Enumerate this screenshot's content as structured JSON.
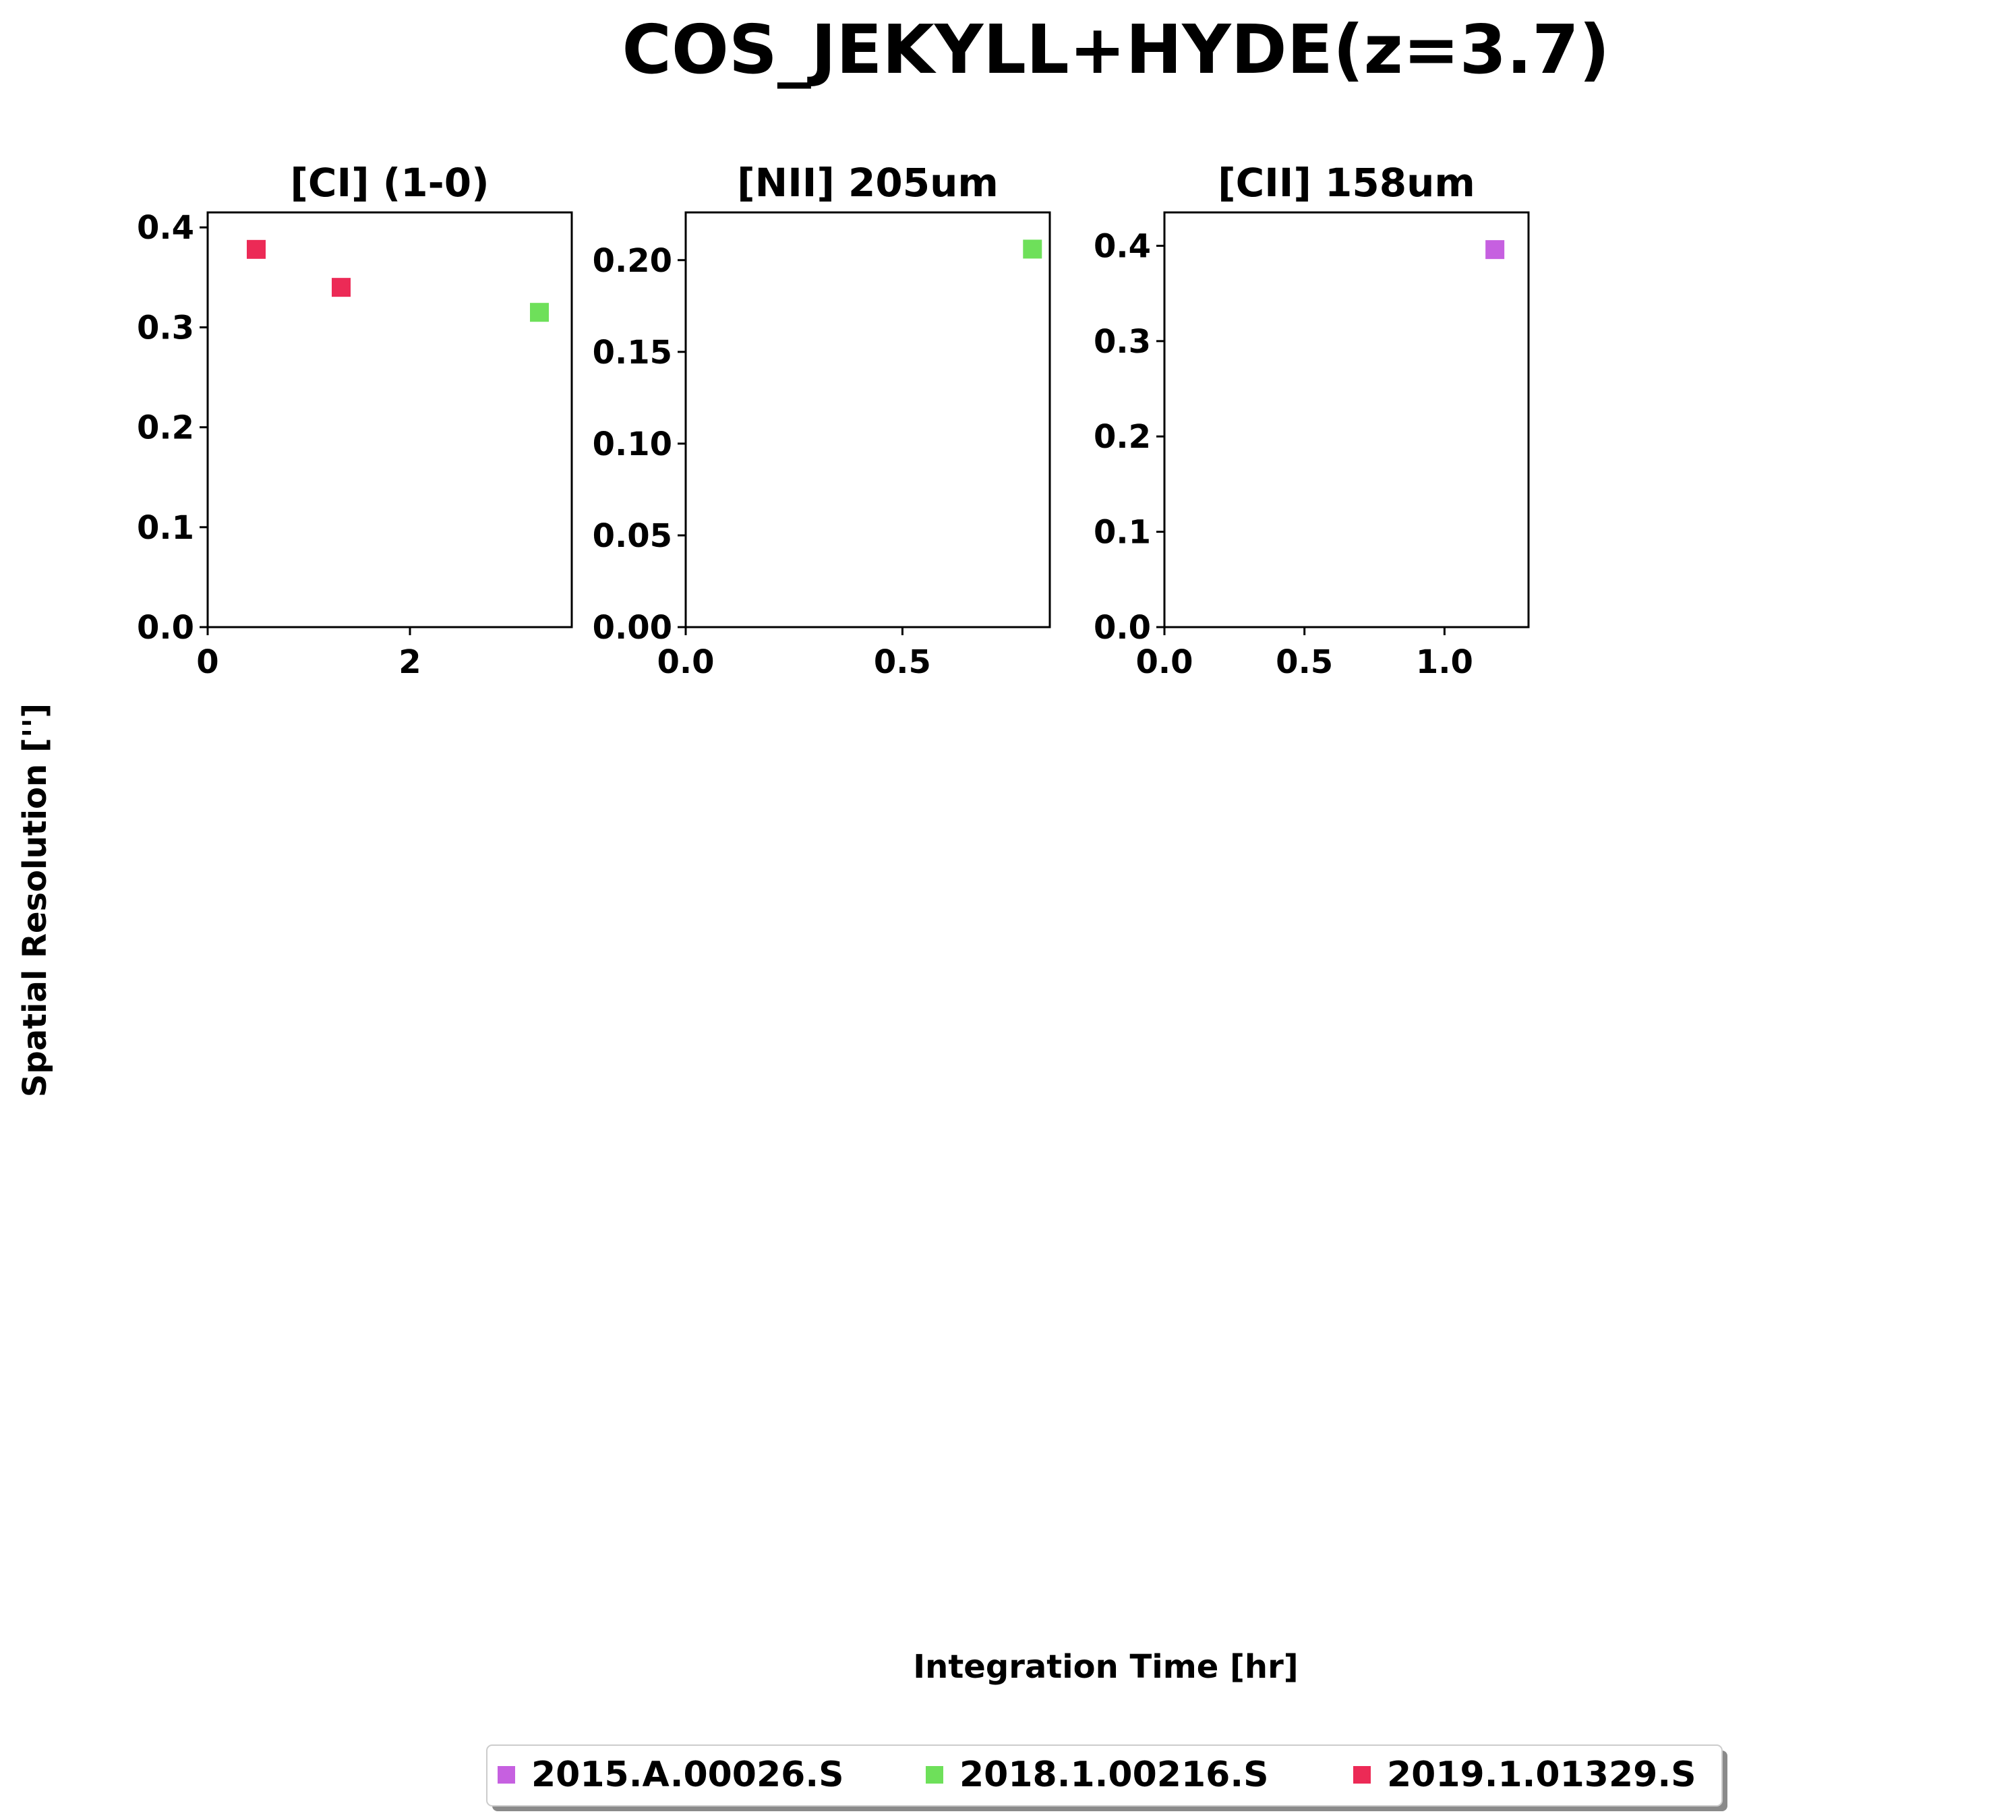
{
  "figure": {
    "title": "COS_JEKYLL+HYDE(z=3.7)",
    "xlabel": "Integration Time [hr]",
    "ylabel": "Spatial Resolution ['']"
  },
  "legend": {
    "placement": "bottom-center",
    "entries": [
      {
        "label": "2015.A.00026.S",
        "color": "#c660e0"
      },
      {
        "label": "2018.1.00216.S",
        "color": "#6ee05a"
      },
      {
        "label": "2019.1.01329.S",
        "color": "#ec2a56"
      }
    ]
  },
  "chart_data": [
    {
      "type": "scatter",
      "title": "[CI] (1-0)",
      "xlim": [
        0,
        3.6
      ],
      "ylim": [
        0,
        0.415
      ],
      "xticks": [
        {
          "v": 0,
          "label": "0"
        },
        {
          "v": 2,
          "label": "2"
        }
      ],
      "yticks": [
        {
          "v": 0,
          "label": "0.0"
        },
        {
          "v": 0.1,
          "label": "0.1"
        },
        {
          "v": 0.2,
          "label": "0.2"
        },
        {
          "v": 0.3,
          "label": "0.3"
        },
        {
          "v": 0.4,
          "label": "0.4"
        }
      ],
      "points": [
        {
          "x": 0.48,
          "y": 0.378,
          "series": "2019.1.01329.S"
        },
        {
          "x": 1.32,
          "y": 0.34,
          "series": "2019.1.01329.S"
        },
        {
          "x": 3.28,
          "y": 0.315,
          "series": "2018.1.00216.S"
        }
      ]
    },
    {
      "type": "scatter",
      "title": "[NII] 205um",
      "xlim": [
        0,
        0.84
      ],
      "ylim": [
        0,
        0.226
      ],
      "xticks": [
        {
          "v": 0,
          "label": "0.0"
        },
        {
          "v": 0.5,
          "label": "0.5"
        }
      ],
      "yticks": [
        {
          "v": 0,
          "label": "0.00"
        },
        {
          "v": 0.05,
          "label": "0.05"
        },
        {
          "v": 0.1,
          "label": "0.10"
        },
        {
          "v": 0.15,
          "label": "0.15"
        },
        {
          "v": 0.2,
          "label": "0.20"
        }
      ],
      "points": [
        {
          "x": 0.8,
          "y": 0.206,
          "series": "2018.1.00216.S"
        }
      ]
    },
    {
      "type": "scatter",
      "title": "[CII] 158um",
      "xlim": [
        0,
        1.3
      ],
      "ylim": [
        0,
        0.435
      ],
      "xticks": [
        {
          "v": 0,
          "label": "0.0"
        },
        {
          "v": 0.5,
          "label": "0.5"
        },
        {
          "v": 1.0,
          "label": "1.0"
        }
      ],
      "yticks": [
        {
          "v": 0,
          "label": "0.0"
        },
        {
          "v": 0.1,
          "label": "0.1"
        },
        {
          "v": 0.2,
          "label": "0.2"
        },
        {
          "v": 0.3,
          "label": "0.3"
        },
        {
          "v": 0.4,
          "label": "0.4"
        }
      ],
      "points": [
        {
          "x": 1.18,
          "y": 0.396,
          "series": "2015.A.00026.S"
        }
      ]
    }
  ]
}
